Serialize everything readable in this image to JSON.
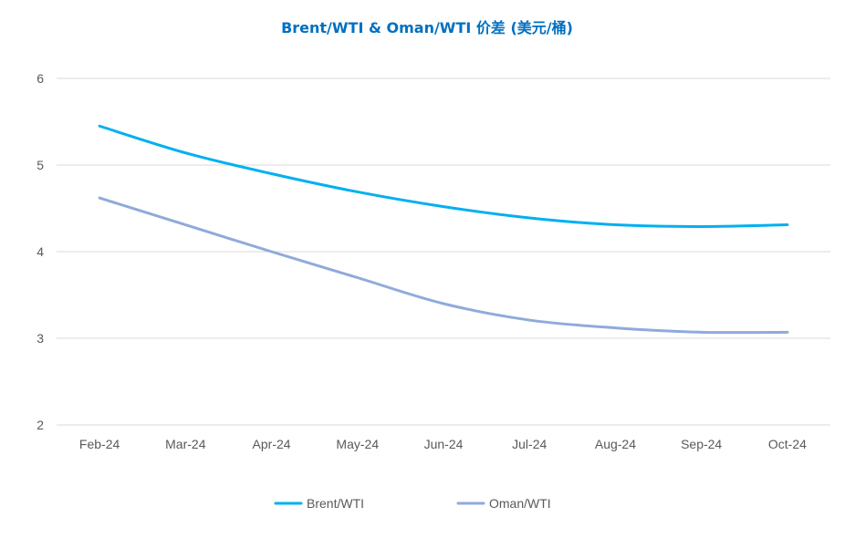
{
  "chart_data": {
    "type": "line",
    "title": "Brent/WTI & Oman/WTI 价差 (美元/桶)",
    "xlabel": "",
    "ylabel": "",
    "categories": [
      "Feb-24",
      "Mar-24",
      "Apr-24",
      "May-24",
      "Jun-24",
      "Jul-24",
      "Aug-24",
      "Sep-24",
      "Oct-24"
    ],
    "ylim": [
      2,
      6
    ],
    "yticks": [
      "2",
      "3",
      "4",
      "5",
      "6"
    ],
    "grid": true,
    "legend_position": "bottom",
    "series": [
      {
        "name": "Brent/WTI",
        "values": [
          5.45,
          5.14,
          4.9,
          4.69,
          4.52,
          4.39,
          4.31,
          4.29,
          4.31
        ],
        "color": "#00b0f0"
      },
      {
        "name": "Oman/WTI",
        "values": [
          4.62,
          4.31,
          4.0,
          3.7,
          3.4,
          3.21,
          3.12,
          3.07,
          3.07
        ],
        "color": "#8faadc"
      }
    ],
    "title_color": "#0070c0",
    "grid_color": "#d9d9d9",
    "text_color": "#595959"
  }
}
